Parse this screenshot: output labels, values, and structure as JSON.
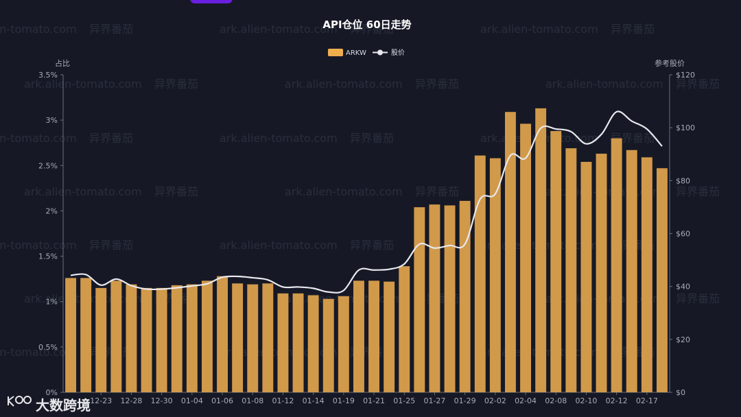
{
  "chart_data": {
    "type": "bar",
    "title": "API仓位 60日走势",
    "left_axis_label": "占比",
    "right_axis_label": "参考股价",
    "left_ylim": [
      0,
      3.5
    ],
    "left_ticks": [
      "0%",
      "0.5%",
      "1%",
      "1.5%",
      "2%",
      "2.5%",
      "3%",
      "3.5%"
    ],
    "right_ylim": [
      0,
      120
    ],
    "right_ticks": [
      "$0",
      "$20",
      "$40",
      "$60",
      "$80",
      "$100",
      "$120"
    ],
    "x_tick_labels": [
      "12-23",
      "12-28",
      "12-30",
      "01-04",
      "01-06",
      "01-08",
      "01-12",
      "01-14",
      "01-19",
      "01-21",
      "01-25",
      "01-27",
      "01-29",
      "02-02",
      "02-04",
      "02-08",
      "02-10",
      "02-12",
      "02-17"
    ],
    "legend": [
      {
        "name": "ARKW",
        "color": "#f0ad4e"
      },
      {
        "name": "股价",
        "color": "#e8e8ee"
      }
    ],
    "series": [
      {
        "name": "ARKW",
        "kind": "bar",
        "values": [
          1.26,
          1.26,
          1.15,
          1.23,
          1.19,
          1.15,
          1.15,
          1.18,
          1.19,
          1.23,
          1.28,
          1.2,
          1.19,
          1.2,
          1.09,
          1.09,
          1.07,
          1.03,
          1.06,
          1.23,
          1.23,
          1.22,
          1.39,
          2.04,
          2.07,
          2.06,
          2.11,
          2.61,
          2.58,
          3.09,
          2.96,
          3.13,
          2.88,
          2.69,
          2.54,
          2.63,
          2.8,
          2.67,
          2.59,
          2.47
        ]
      },
      {
        "name": "股价",
        "kind": "line",
        "values": [
          44.2,
          44.5,
          40.5,
          42.8,
          40.3,
          39,
          39,
          39.5,
          40.2,
          41,
          43.5,
          43.8,
          43.3,
          42.5,
          39.8,
          39.8,
          39.3,
          37.9,
          38.5,
          46.2,
          46.2,
          46.5,
          48.5,
          56,
          54.5,
          55.5,
          56,
          73,
          75,
          89.5,
          88.5,
          99.8,
          99.5,
          98.5,
          93.9,
          97.5,
          106,
          102.5,
          99.5,
          93
        ]
      }
    ],
    "colors": {
      "bar": "#d1994a",
      "line": "#e8e8ee",
      "background": "#161925"
    }
  },
  "watermarks": [
    "ark.alien-tomato.com",
    "异界番茄"
  ],
  "logo": {
    "text": "大数跨境",
    "mark": "i100"
  }
}
